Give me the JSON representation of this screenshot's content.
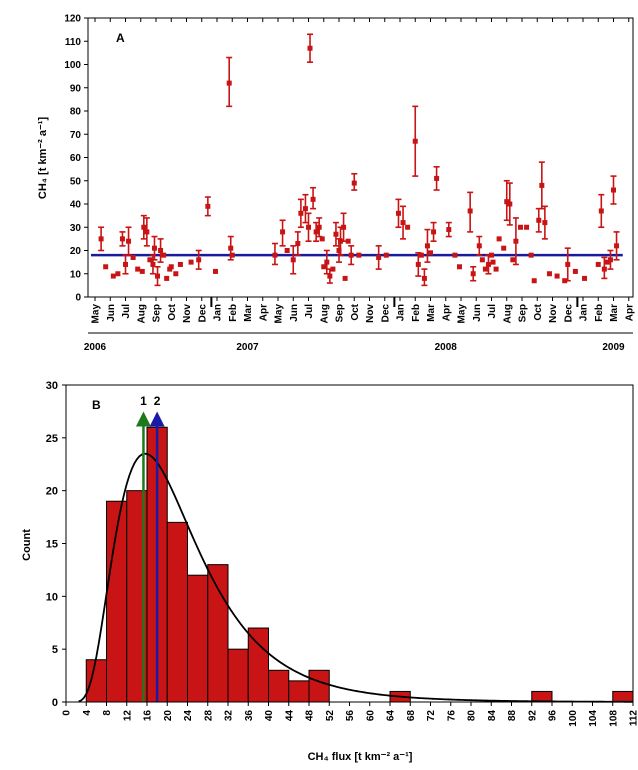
{
  "chart_data": [
    {
      "panel": "A",
      "type": "scatter",
      "ylabel": "CH₄ [t km⁻² a⁻¹]",
      "ylim": [
        0,
        120
      ],
      "yticks": [
        0,
        10,
        20,
        30,
        40,
        50,
        60,
        70,
        80,
        90,
        100,
        110,
        120
      ],
      "xlim": [
        0,
        35.5
      ],
      "xticks": [
        {
          "label": "May",
          "m": 0
        },
        {
          "label": "Jun",
          "m": 1
        },
        {
          "label": "Jul",
          "m": 2
        },
        {
          "label": "Aug",
          "m": 3
        },
        {
          "label": "Sep",
          "m": 4
        },
        {
          "label": "Oct",
          "m": 5
        },
        {
          "label": "Nov",
          "m": 6
        },
        {
          "label": "Dec",
          "m": 7
        },
        {
          "label": "Jan",
          "m": 8
        },
        {
          "label": "Feb",
          "m": 9
        },
        {
          "label": "Mar",
          "m": 10
        },
        {
          "label": "Apr",
          "m": 11
        },
        {
          "label": "May",
          "m": 12
        },
        {
          "label": "Jun",
          "m": 13
        },
        {
          "label": "Jul",
          "m": 14
        },
        {
          "label": "Aug",
          "m": 15
        },
        {
          "label": "Sep",
          "m": 16
        },
        {
          "label": "Oct",
          "m": 17
        },
        {
          "label": "Nov",
          "m": 18
        },
        {
          "label": "Dec",
          "m": 19
        },
        {
          "label": "Jan",
          "m": 20
        },
        {
          "label": "Feb",
          "m": 21
        },
        {
          "label": "Mar",
          "m": 22
        },
        {
          "label": "Apr",
          "m": 23
        },
        {
          "label": "May",
          "m": 24
        },
        {
          "label": "Jun",
          "m": 25
        },
        {
          "label": "Jul",
          "m": 26
        },
        {
          "label": "Aug",
          "m": 27
        },
        {
          "label": "Sep",
          "m": 28
        },
        {
          "label": "Oct",
          "m": 29
        },
        {
          "label": "Nov",
          "m": 30
        },
        {
          "label": "Dec",
          "m": 31
        },
        {
          "label": "Jan",
          "m": 32
        },
        {
          "label": "Feb",
          "m": 33
        },
        {
          "label": "Mar",
          "m": 34
        },
        {
          "label": "Apr",
          "m": 35
        }
      ],
      "years": [
        {
          "label": "2006",
          "m": 0
        },
        {
          "label": "2007",
          "m": 10
        },
        {
          "label": "2008",
          "m": 23
        },
        {
          "label": "2009",
          "m": 34
        }
      ],
      "year_dividers": [
        8,
        20,
        32
      ],
      "reference_line": {
        "y": 18,
        "color": "#1a1a9c"
      },
      "marker_color": "#c81414",
      "points": [
        {
          "x": 0.4,
          "y": 25,
          "lo": 20,
          "hi": 30
        },
        {
          "x": 0.7,
          "y": 13
        },
        {
          "x": 1.2,
          "y": 9
        },
        {
          "x": 1.5,
          "y": 10
        },
        {
          "x": 1.8,
          "y": 25,
          "lo": 22,
          "hi": 28
        },
        {
          "x": 2.0,
          "y": 14,
          "lo": 10,
          "hi": 18
        },
        {
          "x": 2.2,
          "y": 24,
          "lo": 18,
          "hi": 30
        },
        {
          "x": 2.5,
          "y": 17
        },
        {
          "x": 2.8,
          "y": 12
        },
        {
          "x": 3.1,
          "y": 11
        },
        {
          "x": 3.2,
          "y": 30,
          "lo": 25,
          "hi": 35
        },
        {
          "x": 3.4,
          "y": 28,
          "lo": 22,
          "hi": 34
        },
        {
          "x": 3.6,
          "y": 16
        },
        {
          "x": 3.8,
          "y": 14,
          "lo": 10,
          "hi": 18
        },
        {
          "x": 3.9,
          "y": 21,
          "lo": 16,
          "hi": 26
        },
        {
          "x": 4.1,
          "y": 9,
          "lo": 5,
          "hi": 13
        },
        {
          "x": 4.3,
          "y": 20,
          "lo": 15,
          "hi": 25
        },
        {
          "x": 4.5,
          "y": 18
        },
        {
          "x": 4.7,
          "y": 8
        },
        {
          "x": 4.9,
          "y": 12
        },
        {
          "x": 5.0,
          "y": 13
        },
        {
          "x": 5.3,
          "y": 10
        },
        {
          "x": 5.6,
          "y": 14
        },
        {
          "x": 6.3,
          "y": 15
        },
        {
          "x": 6.8,
          "y": 16,
          "lo": 12,
          "hi": 20
        },
        {
          "x": 7.4,
          "y": 39,
          "lo": 35,
          "hi": 43
        },
        {
          "x": 7.9,
          "y": 11
        },
        {
          "x": 8.8,
          "y": 92,
          "lo": 82,
          "hi": 103
        },
        {
          "x": 8.9,
          "y": 21,
          "lo": 16,
          "hi": 26
        },
        {
          "x": 9.0,
          "y": 18
        },
        {
          "x": 11.8,
          "y": 18,
          "lo": 14,
          "hi": 23
        },
        {
          "x": 12.3,
          "y": 28,
          "lo": 22,
          "hi": 33
        },
        {
          "x": 12.6,
          "y": 20
        },
        {
          "x": 13.0,
          "y": 16,
          "lo": 10,
          "hi": 22
        },
        {
          "x": 13.3,
          "y": 23,
          "lo": 18,
          "hi": 28
        },
        {
          "x": 13.5,
          "y": 36,
          "lo": 30,
          "hi": 42
        },
        {
          "x": 13.8,
          "y": 38,
          "lo": 32,
          "hi": 44
        },
        {
          "x": 14.0,
          "y": 30,
          "lo": 24,
          "hi": 36
        },
        {
          "x": 14.1,
          "y": 107,
          "lo": 101,
          "hi": 113
        },
        {
          "x": 14.3,
          "y": 42,
          "lo": 38,
          "hi": 47
        },
        {
          "x": 14.5,
          "y": 28,
          "lo": 24,
          "hi": 32
        },
        {
          "x": 14.7,
          "y": 30,
          "lo": 26,
          "hi": 34
        },
        {
          "x": 14.9,
          "y": 25
        },
        {
          "x": 15.0,
          "y": 13
        },
        {
          "x": 15.2,
          "y": 15,
          "lo": 10,
          "hi": 20
        },
        {
          "x": 15.4,
          "y": 9,
          "lo": 6,
          "hi": 12
        },
        {
          "x": 15.6,
          "y": 12
        },
        {
          "x": 15.8,
          "y": 27,
          "lo": 22,
          "hi": 32
        },
        {
          "x": 16.0,
          "y": 20,
          "lo": 15,
          "hi": 25
        },
        {
          "x": 16.1,
          "y": 24,
          "lo": 18,
          "hi": 30
        },
        {
          "x": 16.3,
          "y": 30,
          "lo": 24,
          "hi": 36
        },
        {
          "x": 16.4,
          "y": 8
        },
        {
          "x": 16.6,
          "y": 24
        },
        {
          "x": 16.8,
          "y": 18,
          "lo": 14,
          "hi": 22
        },
        {
          "x": 17.0,
          "y": 49,
          "lo": 46,
          "hi": 53
        },
        {
          "x": 17.3,
          "y": 18
        },
        {
          "x": 18.6,
          "y": 17,
          "lo": 12,
          "hi": 22
        },
        {
          "x": 19.1,
          "y": 18
        },
        {
          "x": 19.9,
          "y": 36,
          "lo": 30,
          "hi": 42
        },
        {
          "x": 20.2,
          "y": 32,
          "lo": 25,
          "hi": 39
        },
        {
          "x": 20.5,
          "y": 30
        },
        {
          "x": 21.0,
          "y": 67,
          "lo": 52,
          "hi": 82
        },
        {
          "x": 21.2,
          "y": 14,
          "lo": 9,
          "hi": 19
        },
        {
          "x": 21.4,
          "y": 18
        },
        {
          "x": 21.6,
          "y": 8,
          "lo": 5,
          "hi": 12
        },
        {
          "x": 21.8,
          "y": 22,
          "lo": 15,
          "hi": 29
        },
        {
          "x": 22.0,
          "y": 19
        },
        {
          "x": 22.2,
          "y": 28,
          "lo": 24,
          "hi": 32
        },
        {
          "x": 22.4,
          "y": 51,
          "lo": 46,
          "hi": 56
        },
        {
          "x": 23.2,
          "y": 29,
          "lo": 26,
          "hi": 32
        },
        {
          "x": 23.6,
          "y": 18
        },
        {
          "x": 23.9,
          "y": 13
        },
        {
          "x": 24.6,
          "y": 37,
          "lo": 28,
          "hi": 45
        },
        {
          "x": 24.8,
          "y": 10,
          "lo": 7,
          "hi": 13
        },
        {
          "x": 25.2,
          "y": 22,
          "lo": 18,
          "hi": 26
        },
        {
          "x": 25.4,
          "y": 16
        },
        {
          "x": 25.6,
          "y": 12
        },
        {
          "x": 25.8,
          "y": 14,
          "lo": 10,
          "hi": 18
        },
        {
          "x": 26.0,
          "y": 18
        },
        {
          "x": 26.1,
          "y": 15
        },
        {
          "x": 26.3,
          "y": 12
        },
        {
          "x": 26.5,
          "y": 25
        },
        {
          "x": 26.8,
          "y": 21
        },
        {
          "x": 27.0,
          "y": 41,
          "lo": 33,
          "hi": 50
        },
        {
          "x": 27.2,
          "y": 40,
          "lo": 31,
          "hi": 49
        },
        {
          "x": 27.4,
          "y": 16
        },
        {
          "x": 27.6,
          "y": 24,
          "lo": 14,
          "hi": 34
        },
        {
          "x": 27.9,
          "y": 30
        },
        {
          "x": 28.3,
          "y": 30
        },
        {
          "x": 28.6,
          "y": 18
        },
        {
          "x": 28.8,
          "y": 7
        },
        {
          "x": 29.1,
          "y": 33,
          "lo": 28,
          "hi": 38
        },
        {
          "x": 29.3,
          "y": 48,
          "lo": 38,
          "hi": 58
        },
        {
          "x": 29.5,
          "y": 32,
          "lo": 25,
          "hi": 39
        },
        {
          "x": 29.8,
          "y": 10
        },
        {
          "x": 30.3,
          "y": 9
        },
        {
          "x": 30.8,
          "y": 7
        },
        {
          "x": 31.0,
          "y": 14,
          "lo": 7,
          "hi": 21
        },
        {
          "x": 31.5,
          "y": 11
        },
        {
          "x": 32.1,
          "y": 8
        },
        {
          "x": 33.0,
          "y": 14
        },
        {
          "x": 33.2,
          "y": 37,
          "lo": 30,
          "hi": 44
        },
        {
          "x": 33.4,
          "y": 12,
          "lo": 8,
          "hi": 17
        },
        {
          "x": 33.6,
          "y": 15
        },
        {
          "x": 33.8,
          "y": 16,
          "lo": 12,
          "hi": 20
        },
        {
          "x": 34.0,
          "y": 46,
          "lo": 40,
          "hi": 52
        },
        {
          "x": 34.2,
          "y": 22,
          "lo": 16,
          "hi": 28
        }
      ]
    },
    {
      "panel": "B",
      "type": "bar",
      "xlabel": "CH₄ flux [t km⁻² a⁻¹]",
      "ylabel": "Count",
      "xlim": [
        0,
        112
      ],
      "ylim": [
        0,
        30
      ],
      "xticks": [
        0,
        4,
        8,
        12,
        16,
        20,
        24,
        28,
        32,
        36,
        40,
        44,
        48,
        52,
        56,
        60,
        64,
        68,
        72,
        76,
        80,
        84,
        88,
        92,
        96,
        100,
        104,
        108,
        112
      ],
      "yticks": [
        0,
        5,
        10,
        15,
        20,
        25,
        30
      ],
      "bin_width": 4,
      "bins": [
        {
          "x0": 4,
          "count": 4
        },
        {
          "x0": 8,
          "count": 19
        },
        {
          "x0": 12,
          "count": 20
        },
        {
          "x0": 16,
          "count": 26
        },
        {
          "x0": 20,
          "count": 17
        },
        {
          "x0": 24,
          "count": 12
        },
        {
          "x0": 28,
          "count": 13
        },
        {
          "x0": 32,
          "count": 5
        },
        {
          "x0": 36,
          "count": 7
        },
        {
          "x0": 40,
          "count": 3
        },
        {
          "x0": 44,
          "count": 2
        },
        {
          "x0": 48,
          "count": 3
        },
        {
          "x0": 64,
          "count": 1
        },
        {
          "x0": 92,
          "count": 1
        },
        {
          "x0": 108,
          "count": 1
        }
      ],
      "bar_color": "#c81414",
      "fit_curve": {
        "type": "lognormal",
        "n": 134,
        "mode_x": 15.5,
        "peak": 23.5
      },
      "markers": [
        {
          "label": "1",
          "x": 15.3,
          "color": "#1c7a1c"
        },
        {
          "label": "2",
          "x": 18.0,
          "color": "#1a1aa8"
        }
      ]
    }
  ]
}
